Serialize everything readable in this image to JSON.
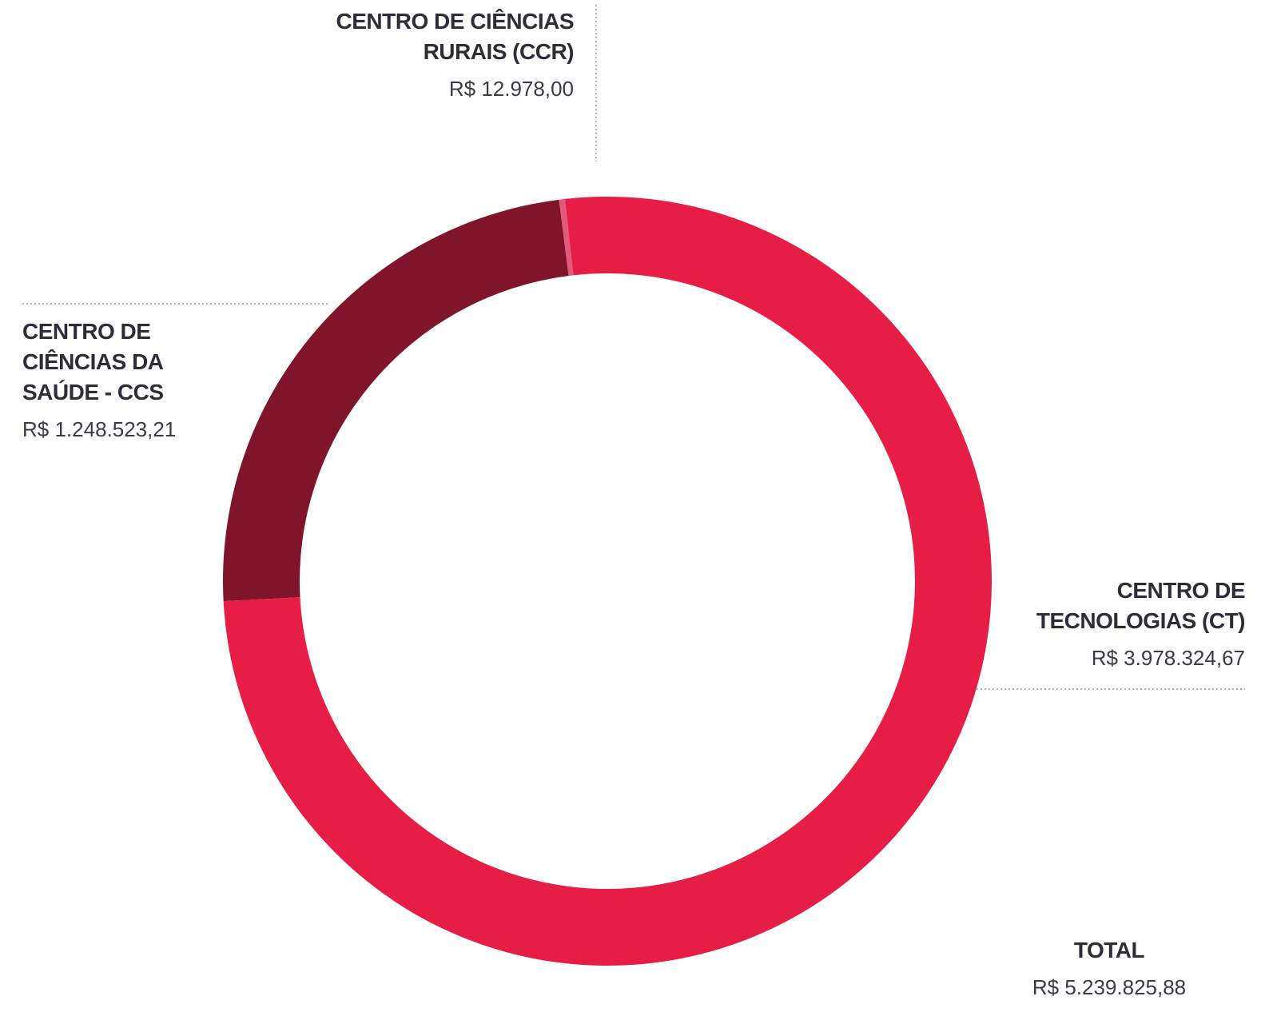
{
  "chart_data": {
    "type": "donut",
    "categories": [
      "CENTRO DE CIÊNCIAS DA SAÚDE - CCS",
      "CENTRO DE CIÊNCIAS RURAIS (CCR)",
      "CENTRO DE TECNOLOGIAS (CT)"
    ],
    "values": [
      1248523.21,
      12978.0,
      3978324.67
    ],
    "value_labels": [
      "R$ 1.248.523,21",
      "R$ 12.978,00",
      "R$ 3.978.324,67"
    ],
    "colors": [
      "#80142b",
      "#e4587a",
      "#e61e45"
    ],
    "total_label": "TOTAL",
    "total": 5239825.88,
    "total_value_label": "R$ 5.239.825,88"
  }
}
